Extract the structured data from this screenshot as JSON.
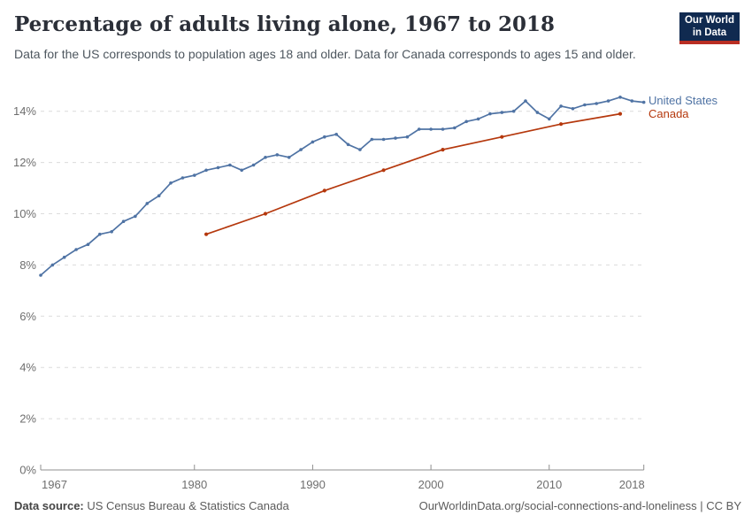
{
  "header": {
    "title": "Percentage of adults living alone, 1967 to 2018",
    "subtitle": "Data for the US corresponds to population ages 18 and older. Data for Canada corresponds to ages 15 and older."
  },
  "logo": {
    "line1": "Our World",
    "line2": "in Data",
    "bg_color": "#102a50",
    "accent_color": "#b92e23"
  },
  "chart_data": {
    "type": "line",
    "title": "Percentage of adults living alone, 1967 to 2018",
    "xlabel": "",
    "ylabel": "",
    "x_range": [
      1967,
      2018
    ],
    "ylim": [
      0,
      14
    ],
    "grid": true,
    "legend_position": "right",
    "y_ticks": [
      {
        "value": 0,
        "label": "0%"
      },
      {
        "value": 2,
        "label": "2%"
      },
      {
        "value": 4,
        "label": "4%"
      },
      {
        "value": 6,
        "label": "6%"
      },
      {
        "value": 8,
        "label": "8%"
      },
      {
        "value": 10,
        "label": "10%"
      },
      {
        "value": 12,
        "label": "12%"
      },
      {
        "value": 14,
        "label": "14%"
      }
    ],
    "x_ticks": [
      {
        "value": 1967,
        "label": "1967"
      },
      {
        "value": 1980,
        "label": "1980"
      },
      {
        "value": 1990,
        "label": "1990"
      },
      {
        "value": 2000,
        "label": "2000"
      },
      {
        "value": 2010,
        "label": "2010"
      },
      {
        "value": 2018,
        "label": "2018"
      }
    ],
    "series": [
      {
        "name": "United States",
        "color": "#4f73a4",
        "x": [
          1967,
          1968,
          1969,
          1970,
          1971,
          1972,
          1973,
          1974,
          1975,
          1976,
          1977,
          1978,
          1979,
          1980,
          1981,
          1982,
          1983,
          1984,
          1985,
          1986,
          1987,
          1988,
          1989,
          1990,
          1991,
          1992,
          1993,
          1994,
          1995,
          1996,
          1997,
          1998,
          1999,
          2000,
          2001,
          2002,
          2003,
          2004,
          2005,
          2006,
          2007,
          2008,
          2009,
          2010,
          2011,
          2012,
          2013,
          2014,
          2015,
          2016,
          2017,
          2018
        ],
        "values": [
          7.6,
          8.0,
          8.3,
          8.6,
          8.8,
          9.2,
          9.3,
          9.7,
          9.9,
          10.4,
          10.7,
          11.2,
          11.4,
          11.5,
          11.7,
          11.8,
          11.9,
          11.7,
          11.9,
          12.2,
          12.3,
          12.2,
          12.5,
          12.8,
          13.0,
          13.1,
          12.7,
          12.5,
          12.9,
          12.9,
          12.95,
          13.0,
          13.3,
          13.3,
          13.3,
          13.35,
          13.6,
          13.7,
          13.9,
          13.95,
          14.0,
          14.4,
          13.95,
          13.7,
          14.2,
          14.1,
          14.25,
          14.3,
          14.4,
          14.55,
          14.4,
          14.35
        ]
      },
      {
        "name": "Canada",
        "color": "#b5380d",
        "x": [
          1981,
          1986,
          1991,
          1996,
          2001,
          2006,
          2011,
          2016
        ],
        "values": [
          9.2,
          10.0,
          10.9,
          11.7,
          12.5,
          13.0,
          13.5,
          13.9
        ]
      }
    ]
  },
  "footer": {
    "source_label": "Data source:",
    "source_value": " US Census Bureau & Statistics Canada",
    "attribution": "OurWorldinData.org/social-connections-and-loneliness | CC BY"
  }
}
